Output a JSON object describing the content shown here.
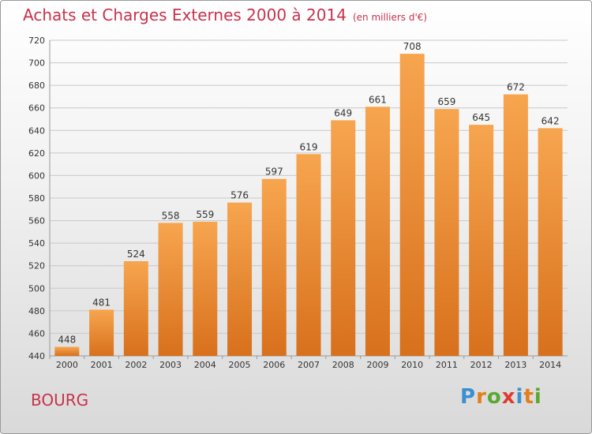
{
  "chart_data": {
    "type": "bar",
    "title": "Achats et Charges Externes 2000 à 2014",
    "subtitle": "(en milliers d'€)",
    "categories": [
      "2000",
      "2001",
      "2002",
      "2003",
      "2004",
      "2005",
      "2006",
      "2007",
      "2008",
      "2009",
      "2010",
      "2011",
      "2012",
      "2013",
      "2014"
    ],
    "values": [
      448,
      481,
      524,
      558,
      559,
      576,
      597,
      619,
      649,
      661,
      708,
      659,
      645,
      672,
      642
    ],
    "ylim": [
      440,
      720
    ],
    "yticks": [
      440,
      460,
      480,
      500,
      520,
      540,
      560,
      580,
      600,
      620,
      640,
      660,
      680,
      700,
      720
    ],
    "grid": true,
    "bar_color": "#f5a04a"
  },
  "location": "BOURG",
  "logo": {
    "letters": [
      "P",
      "r",
      "o",
      "x",
      "i",
      "t",
      "i"
    ],
    "colors": [
      "#3a8fd0",
      "#e27e1b",
      "#5aa832",
      "#e03a2e",
      "#3a8fd0",
      "#e27e1b",
      "#5aa832"
    ]
  }
}
